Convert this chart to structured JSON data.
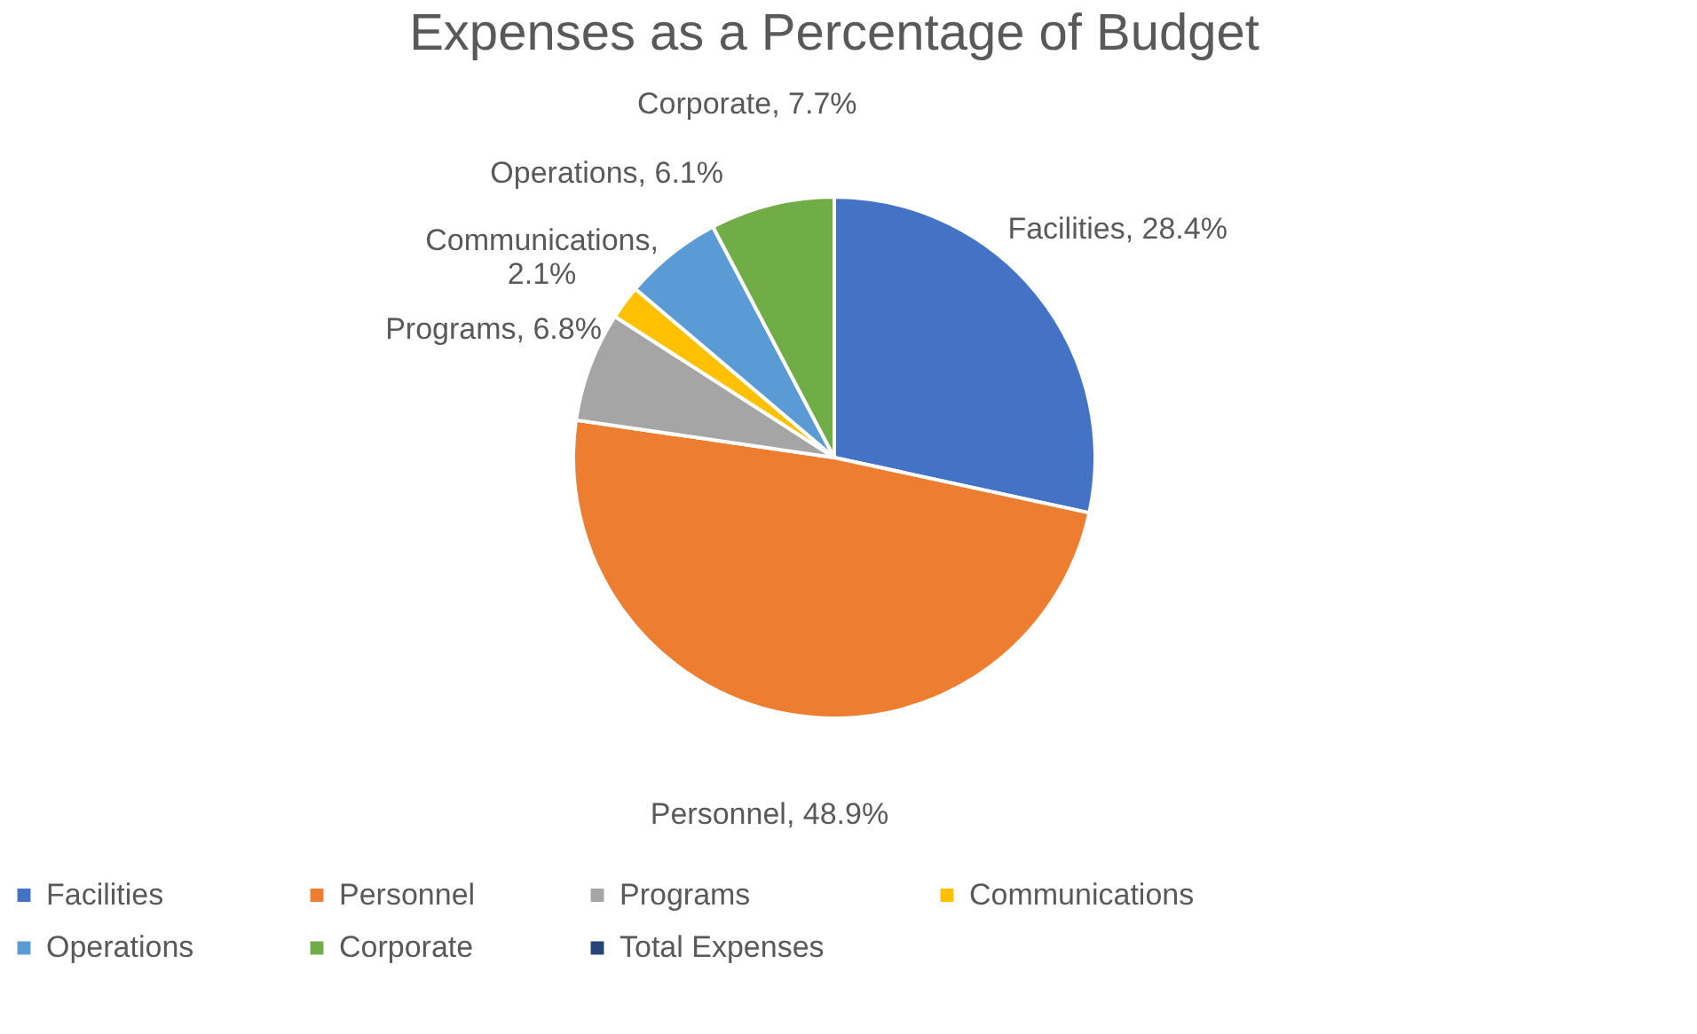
{
  "chart_data": {
    "type": "pie",
    "title": "Expenses as a Percentage of Budget",
    "categories": [
      "Facilities",
      "Personnel",
      "Programs",
      "Communications",
      "Operations",
      "Corporate",
      "Total Expenses"
    ],
    "values": [
      28.4,
      48.9,
      6.8,
      2.1,
      6.1,
      7.7,
      0
    ],
    "value_labels": [
      "Facilities, 28.4%",
      "Personnel, 48.9%",
      "Programs, 6.8%",
      "Communications,\n2.1%",
      "Operations, 6.1%",
      "Corporate, 7.7%",
      null
    ],
    "colors": [
      "#4472c4",
      "#ed7d31",
      "#a5a5a5",
      "#ffc000",
      "#5b9bd5",
      "#70ad47",
      "#264478"
    ],
    "legend": "bottom"
  }
}
